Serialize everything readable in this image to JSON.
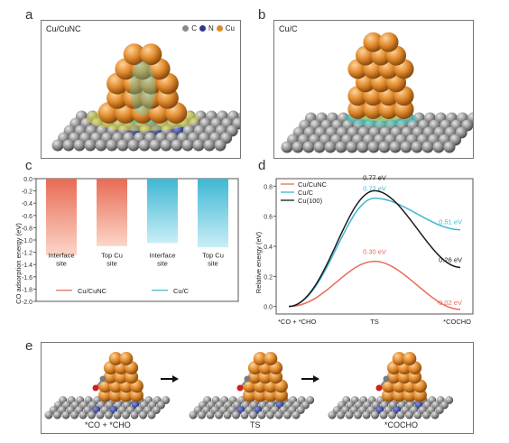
{
  "panels": {
    "a": {
      "label": "a",
      "title": "Cu/CuNC",
      "legend": [
        {
          "text": "C",
          "color": "#8a8a8a"
        },
        {
          "text": "N",
          "color": "#2c3a8c"
        },
        {
          "text": "Cu",
          "color": "#e08a2c"
        }
      ]
    },
    "b": {
      "label": "b",
      "title": "Cu/C"
    },
    "c": {
      "label": "c"
    },
    "d": {
      "label": "d"
    },
    "e": {
      "label": "e",
      "steps": [
        "*CO + *CHO",
        "TS",
        "*COCHO"
      ]
    }
  },
  "colors": {
    "cu": "#e08a2c",
    "substrate": "#8e8e8e",
    "orange_series": "#e86b55",
    "blue_series": "#3fb7d3",
    "black_series": "#1a1a1a"
  },
  "chart_data": [
    {
      "type": "bar",
      "panel": "c",
      "categories": [
        "Interface site",
        "Top Cu site",
        "Interface site",
        "Top Cu site"
      ],
      "category_lines": [
        [
          "Interface",
          "site"
        ],
        [
          "Top Cu",
          "site"
        ],
        [
          "Interface",
          "site"
        ],
        [
          "Top Cu",
          "site"
        ]
      ],
      "series": [
        {
          "name": "Cu/CuNC",
          "values": [
            -1.25,
            -1.1,
            null,
            null
          ],
          "color": "#e86b55"
        },
        {
          "name": "Cu/C",
          "values": [
            null,
            null,
            -1.05,
            -1.12
          ],
          "color": "#3fb7d3"
        }
      ],
      "ylabel": "CO adsorption energy (eV)",
      "ylim": [
        -2.0,
        0.0
      ],
      "yticks": [
        "0.0",
        "-0.2",
        "-0.4",
        "-0.6",
        "-0.8",
        "-1.0",
        "-1.2",
        "-1.4",
        "-1.6",
        "-1.8",
        "-2.0"
      ],
      "legend_placement": "bottom"
    },
    {
      "type": "line",
      "panel": "d",
      "x": [
        "*CO + *CHO",
        "TS",
        "*COCHO"
      ],
      "ylabel": "Relative energy (eV)",
      "ylim": [
        -0.05,
        0.85
      ],
      "yticks": [
        "0.0",
        "0.2",
        "0.4",
        "0.6",
        "0.8"
      ],
      "series": [
        {
          "name": "Cu/CuNC",
          "values": [
            0.0,
            0.3,
            -0.02
          ],
          "labels": [
            "",
            "0.30 eV",
            "-0.02 eV"
          ],
          "color": "#e86b55"
        },
        {
          "name": "Cu/C",
          "values": [
            0.0,
            0.72,
            0.51
          ],
          "labels": [
            "",
            "0.72 eV",
            "0.51 eV"
          ],
          "color": "#3fb7d3"
        },
        {
          "name": "Cu(100)",
          "values": [
            0.0,
            0.77,
            0.26
          ],
          "labels": [
            "",
            "0.77 eV",
            "0.26 eV"
          ],
          "color": "#1a1a1a"
        }
      ],
      "legend_placement": "top-left"
    }
  ]
}
